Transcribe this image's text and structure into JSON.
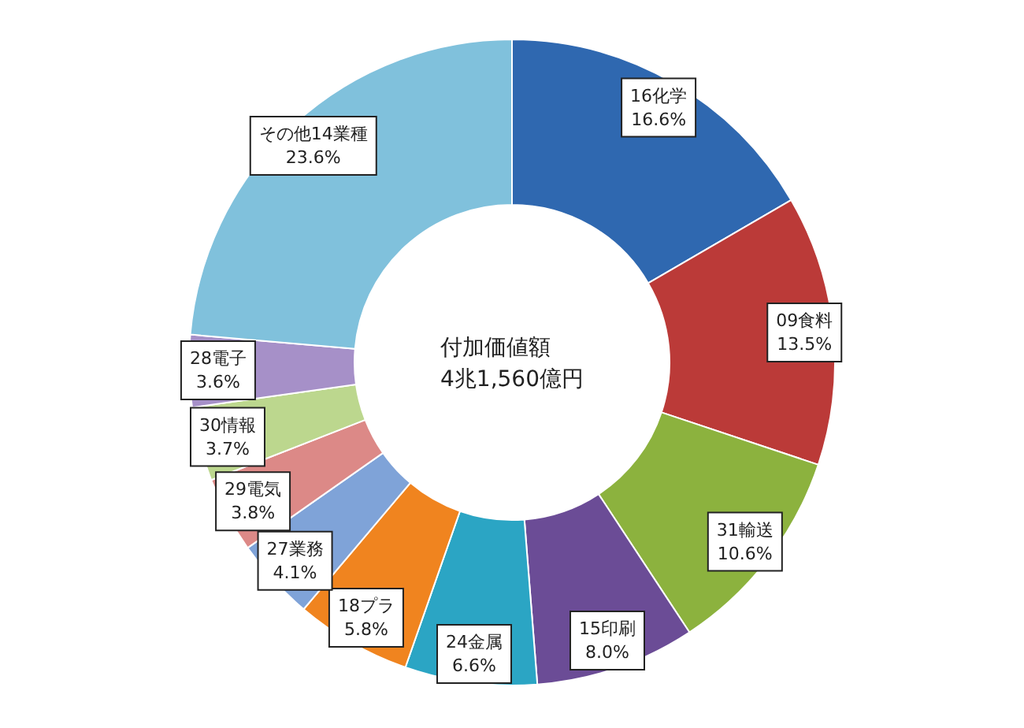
{
  "chart_data": {
    "type": "donut",
    "categories": [
      "16化学",
      "09食料",
      "31輸送",
      "15印刷",
      "24金属",
      "18プラ",
      "27業務",
      "29電気",
      "30情報",
      "28電子",
      "その他14業種"
    ],
    "values": [
      16.6,
      13.5,
      10.6,
      8.0,
      6.6,
      5.8,
      4.1,
      3.8,
      3.7,
      3.6,
      23.6
    ],
    "value_labels": [
      "16.6%",
      "13.5%",
      "10.6%",
      "8.0%",
      "6.6%",
      "5.8%",
      "4.1%",
      "3.8%",
      "3.7%",
      "3.6%",
      "23.6%"
    ],
    "colors": [
      "#2f68b0",
      "#bb3a38",
      "#8cb23e",
      "#6b4c96",
      "#2ba5c4",
      "#f0841f",
      "#7fa3d8",
      "#dc8987",
      "#bcd78e",
      "#a690c8",
      "#80c1dc"
    ],
    "annotations": [
      "付加価値額\n4兆1,560億円"
    ],
    "legend": false
  }
}
